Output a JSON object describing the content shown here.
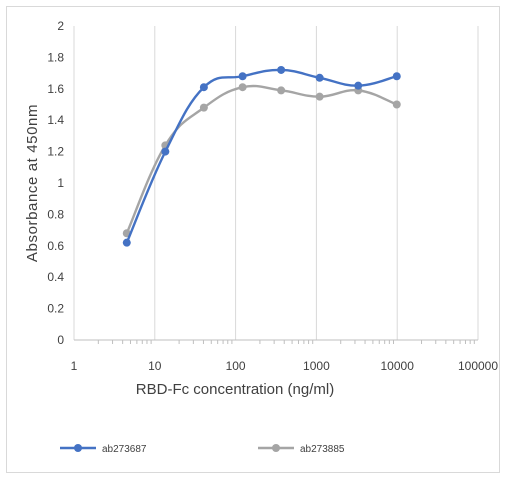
{
  "chart_data": {
    "type": "line",
    "x_scale": "log",
    "xlabel": "RBD-Fc concentration (ng/ml)",
    "ylabel": "Absorbance at 450nm",
    "xlim": [
      1,
      100000
    ],
    "ylim": [
      0,
      2
    ],
    "x_ticks": [
      "1",
      "10",
      "100",
      "1000",
      "10000",
      "100000"
    ],
    "y_ticks": [
      "0",
      "0.2",
      "0.4",
      "0.6",
      "0.8",
      "1",
      "1.2",
      "1.4",
      "1.6",
      "1.8",
      "2"
    ],
    "grid": "vertical major gridlines, horizontal axis with minor tick marks",
    "legend_position": "bottom",
    "series": [
      {
        "name": "ab273687",
        "color": "#4472c4",
        "x": [
          4.5,
          13.5,
          40.5,
          122,
          366,
          1097,
          3292,
          9877
        ],
        "y": [
          0.62,
          1.2,
          1.61,
          1.68,
          1.72,
          1.67,
          1.62,
          1.68
        ]
      },
      {
        "name": "ab273885",
        "color": "#a5a5a5",
        "x": [
          4.5,
          13.5,
          40.5,
          122,
          366,
          1097,
          3292,
          9877
        ],
        "y": [
          0.68,
          1.24,
          1.48,
          1.61,
          1.59,
          1.55,
          1.59,
          1.5
        ]
      }
    ]
  }
}
